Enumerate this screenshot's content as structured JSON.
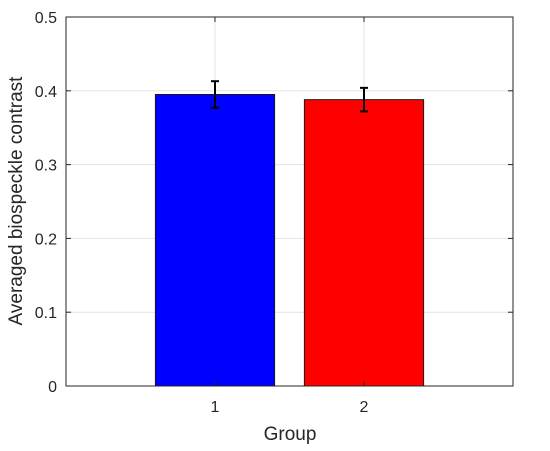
{
  "chart_data": {
    "type": "bar",
    "categories": [
      "1",
      "2"
    ],
    "values": [
      0.395,
      0.388
    ],
    "errors": [
      0.018,
      0.016
    ],
    "colors": [
      "#0000ff",
      "#ff0000"
    ],
    "xlabel": "Group",
    "ylabel": "Averaged biospeckle contrast",
    "ylim": [
      0,
      0.5
    ],
    "yticks": [
      "0",
      "0.1",
      "0.2",
      "0.3",
      "0.4",
      "0.5"
    ],
    "grid": true
  }
}
